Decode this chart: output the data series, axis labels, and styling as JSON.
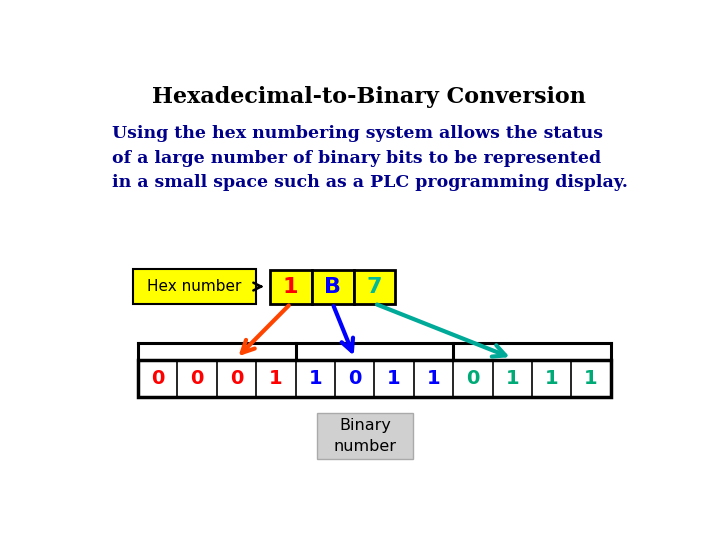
{
  "title": "Hexadecimal-to-Binary Conversion",
  "title_fontsize": 16,
  "title_color": "#000000",
  "body_text": "Using the hex numbering system allows the status\nof a large number of binary bits to be represented\nin a small space such as a PLC programming display.",
  "body_color": "#00008B",
  "body_fontsize": 12.5,
  "hex_label": "Hex number",
  "hex_label_bg": "#FFFF00",
  "hex_digits": [
    "1",
    "B",
    "7"
  ],
  "hex_digit_colors": [
    "#FF0000",
    "#0000FF",
    "#00BB99"
  ],
  "hex_box_bg": "#FFFF00",
  "binary_digits": [
    "0",
    "0",
    "0",
    "1",
    "1",
    "0",
    "1",
    "1",
    "0",
    "1",
    "1",
    "1"
  ],
  "binary_colors": [
    "#FF0000",
    "#FF0000",
    "#FF0000",
    "#FF0000",
    "#0000FF",
    "#0000FF",
    "#0000FF",
    "#0000FF",
    "#00AA77",
    "#00AA77",
    "#00AA77",
    "#00AA77"
  ],
  "arrow1_color": "#FF4400",
  "arrow2_color": "#0000FF",
  "arrow3_color": "#00AA99",
  "bg_color": "#FFFFFF",
  "binary_label": "Binary\nnumber",
  "binary_label_bg": "#D0D0D0"
}
